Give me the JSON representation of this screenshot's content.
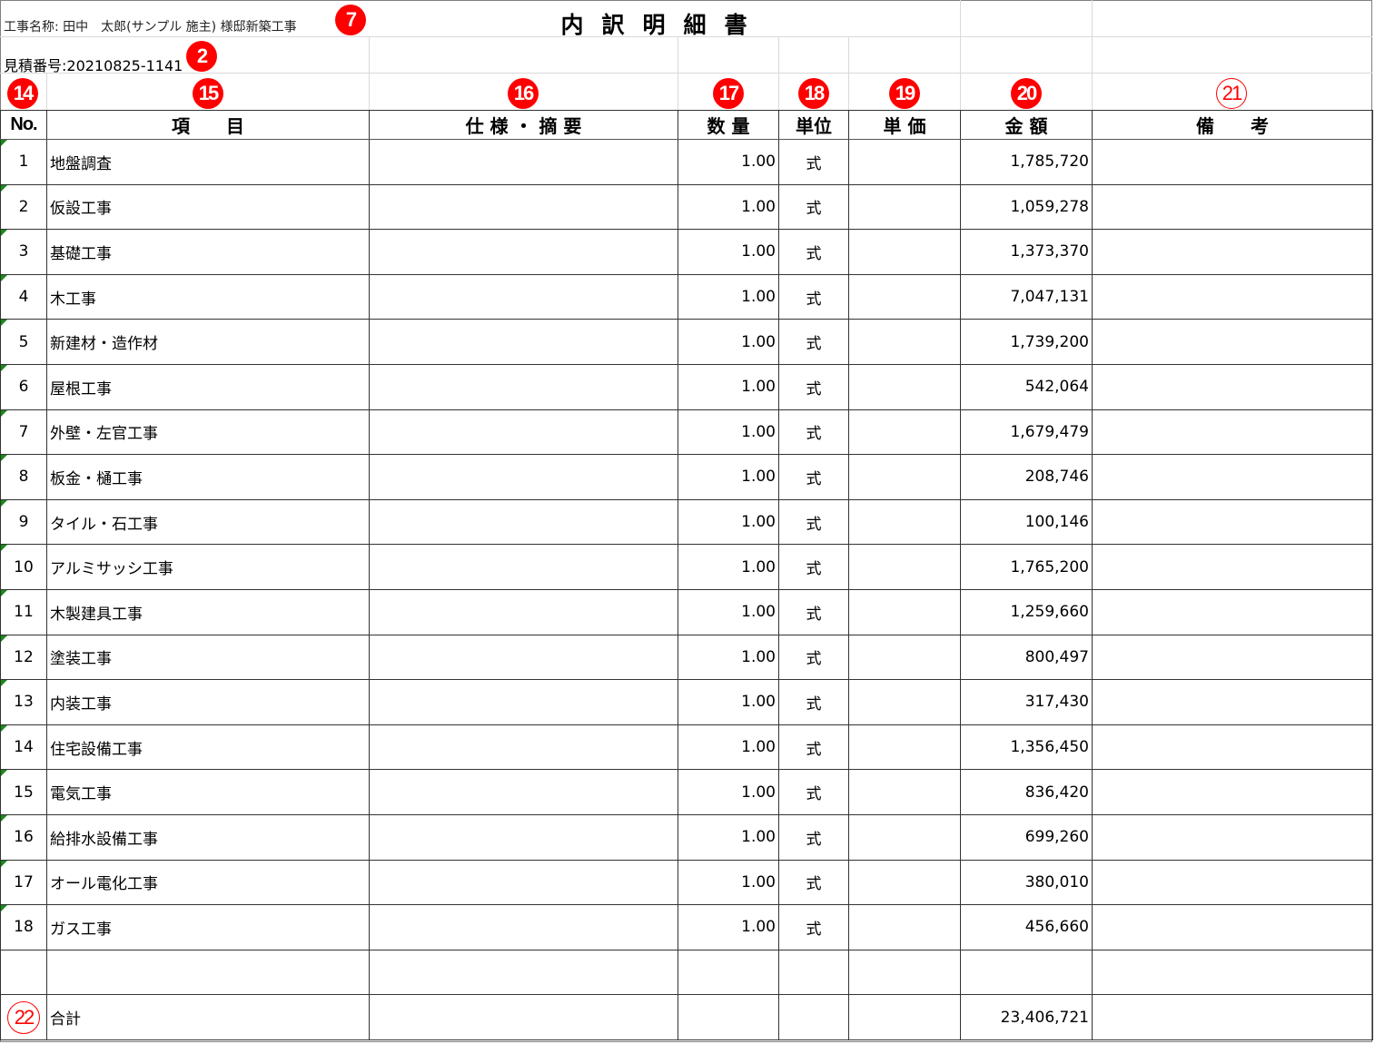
{
  "header": {
    "project_name": "工事名称: 田中　太郎(サンプル 施主) 様邸新築工事",
    "estimate_number": "見積番号:20210825-1141",
    "title": "内訳明細書"
  },
  "markers": {
    "project": "7",
    "estimate": "2",
    "no": "14",
    "item": "15",
    "spec": "16",
    "qty": "17",
    "unit": "18",
    "price": "19",
    "amount": "20",
    "remarks": "21",
    "total": "22"
  },
  "marker_color": "#ff0000",
  "columns": [
    "No.",
    "項　　目",
    "仕 様 ・ 摘 要",
    "数 量",
    "単位",
    "単 価",
    "金 額",
    "備　　考"
  ],
  "rows": [
    {
      "no": "1",
      "item": "地盤調査",
      "qty": "1.00",
      "unit": "式",
      "amount": "1,785,720"
    },
    {
      "no": "2",
      "item": "仮設工事",
      "qty": "1.00",
      "unit": "式",
      "amount": "1,059,278"
    },
    {
      "no": "3",
      "item": "基礎工事",
      "qty": "1.00",
      "unit": "式",
      "amount": "1,373,370"
    },
    {
      "no": "4",
      "item": "木工事",
      "qty": "1.00",
      "unit": "式",
      "amount": "7,047,131"
    },
    {
      "no": "5",
      "item": "新建材・造作材",
      "qty": "1.00",
      "unit": "式",
      "amount": "1,739,200"
    },
    {
      "no": "6",
      "item": "屋根工事",
      "qty": "1.00",
      "unit": "式",
      "amount": "542,064"
    },
    {
      "no": "7",
      "item": "外壁・左官工事",
      "qty": "1.00",
      "unit": "式",
      "amount": "1,679,479"
    },
    {
      "no": "8",
      "item": "板金・樋工事",
      "qty": "1.00",
      "unit": "式",
      "amount": "208,746"
    },
    {
      "no": "9",
      "item": "タイル・石工事",
      "qty": "1.00",
      "unit": "式",
      "amount": "100,146"
    },
    {
      "no": "10",
      "item": "アルミサッシ工事",
      "qty": "1.00",
      "unit": "式",
      "amount": "1,765,200"
    },
    {
      "no": "11",
      "item": "木製建具工事",
      "qty": "1.00",
      "unit": "式",
      "amount": "1,259,660"
    },
    {
      "no": "12",
      "item": "塗装工事",
      "qty": "1.00",
      "unit": "式",
      "amount": "800,497"
    },
    {
      "no": "13",
      "item": "内装工事",
      "qty": "1.00",
      "unit": "式",
      "amount": "317,430"
    },
    {
      "no": "14",
      "item": "住宅設備工事",
      "qty": "1.00",
      "unit": "式",
      "amount": "1,356,450"
    },
    {
      "no": "15",
      "item": "電気工事",
      "qty": "1.00",
      "unit": "式",
      "amount": "836,420"
    },
    {
      "no": "16",
      "item": "給排水設備工事",
      "qty": "1.00",
      "unit": "式",
      "amount": "699,260"
    },
    {
      "no": "17",
      "item": "オール電化工事",
      "qty": "1.00",
      "unit": "式",
      "amount": "380,010"
    },
    {
      "no": "18",
      "item": "ガス工事",
      "qty": "1.00",
      "unit": "式",
      "amount": "456,660"
    }
  ],
  "total": {
    "label": "合計",
    "amount": "23,406,721"
  }
}
